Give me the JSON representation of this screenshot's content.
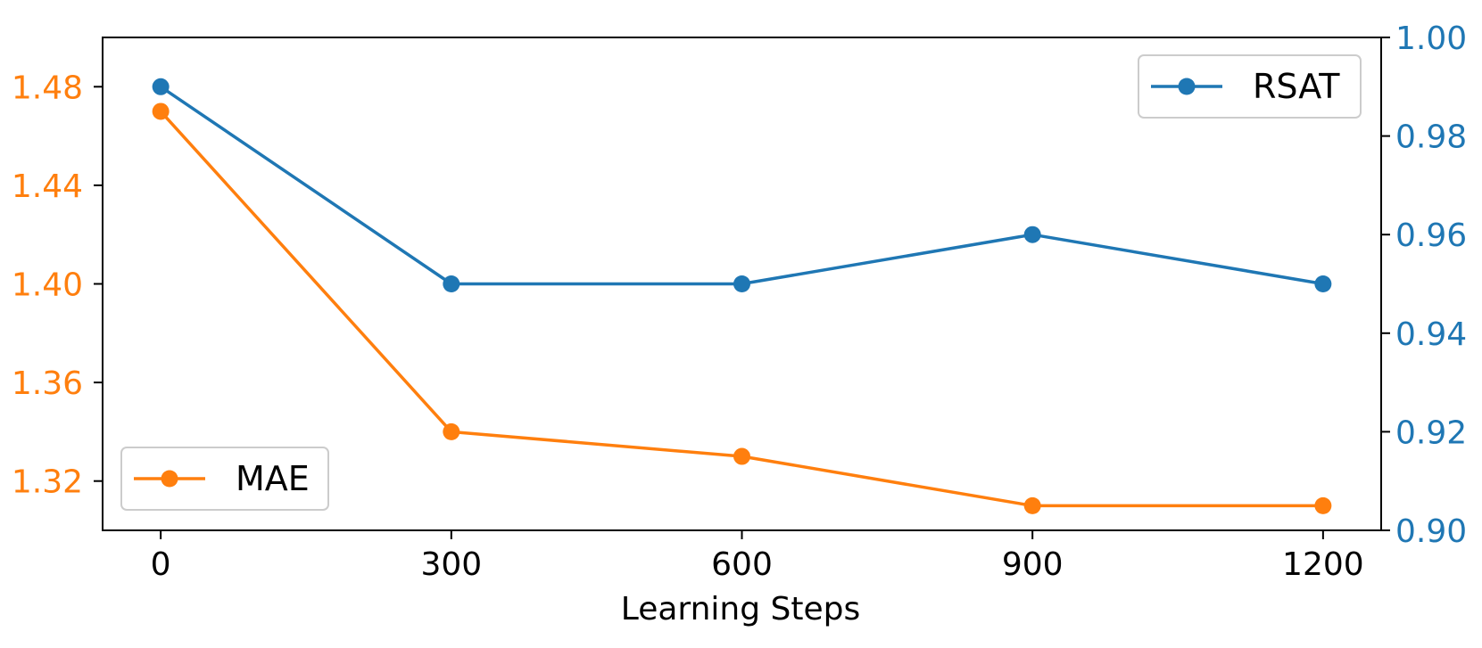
{
  "chart_data": {
    "type": "line",
    "xlabel": "Learning Steps",
    "x": [
      0,
      300,
      600,
      900,
      1200
    ],
    "xticks": [
      "0",
      "300",
      "600",
      "900",
      "1200"
    ],
    "xlim": [
      -60,
      1260
    ],
    "grid": false,
    "series": [
      {
        "name": "MAE",
        "axis": "left",
        "color": "#ff7f0e",
        "values": [
          1.47,
          1.34,
          1.33,
          1.31,
          1.31
        ],
        "legend_position": "lower-left"
      },
      {
        "name": "RSAT",
        "axis": "right",
        "color": "#1f77b4",
        "values": [
          0.99,
          0.95,
          0.95,
          0.96,
          0.95
        ],
        "legend_position": "upper-right"
      }
    ],
    "left_axis": {
      "ylim": [
        1.3,
        1.5
      ],
      "ticks": [
        "1.32",
        "1.36",
        "1.40",
        "1.44",
        "1.48"
      ],
      "color": "#ff7f0e"
    },
    "right_axis": {
      "ylim": [
        0.9,
        1.0
      ],
      "ticks": [
        "0.90",
        "0.92",
        "0.94",
        "0.96",
        "0.98",
        "1.00"
      ],
      "color": "#1f77b4"
    }
  }
}
